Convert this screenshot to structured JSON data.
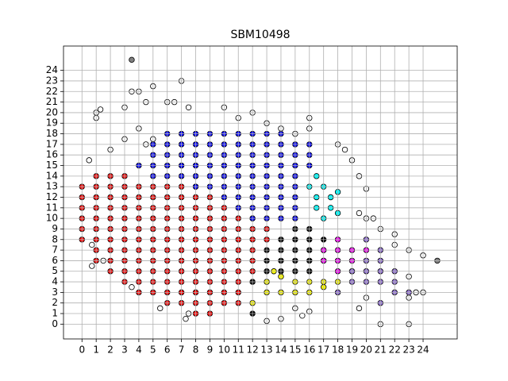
{
  "chart_data": {
    "type": "scatter",
    "title": "SBM10498",
    "xlim": [
      -1.3,
      26.4
    ],
    "ylim": [
      -1.4,
      26.3
    ],
    "xticks": [
      0,
      1,
      2,
      3,
      4,
      5,
      6,
      7,
      8,
      9,
      10,
      11,
      12,
      13,
      14,
      15,
      16,
      17,
      18,
      19,
      20,
      21,
      22,
      23,
      24
    ],
    "yticks": [
      0,
      1,
      2,
      3,
      4,
      5,
      6,
      7,
      8,
      9,
      10,
      11,
      12,
      13,
      14,
      15,
      16,
      17,
      18,
      19,
      20,
      21,
      22,
      23,
      24
    ],
    "grid": true,
    "series": [
      {
        "color": "#ff0000",
        "x": [
          1,
          2,
          3,
          0,
          1,
          2,
          3,
          4,
          5,
          6,
          7,
          8,
          0,
          1,
          2,
          3,
          4,
          5,
          6,
          7,
          8,
          9,
          0,
          1,
          2,
          3,
          4,
          5,
          6,
          7,
          8,
          9,
          10,
          0,
          1,
          2,
          3,
          4,
          5,
          6,
          7,
          8,
          9,
          10,
          11,
          12,
          0,
          1,
          2,
          3,
          4,
          5,
          6,
          7,
          8,
          9,
          10,
          11,
          12,
          13,
          0,
          1,
          2,
          3,
          4,
          5,
          6,
          7,
          8,
          9,
          10,
          11,
          12,
          13,
          1,
          2,
          3,
          4,
          5,
          6,
          7,
          8,
          9,
          10,
          11,
          12,
          1,
          2,
          3,
          4,
          5,
          6,
          7,
          8,
          9,
          10,
          11,
          12,
          2,
          3,
          4,
          5,
          6,
          7,
          8,
          9,
          10,
          11,
          12,
          3,
          4,
          5,
          6,
          7,
          8,
          9,
          10,
          11,
          12,
          4,
          5,
          6,
          7,
          8,
          9,
          10,
          11,
          6,
          7,
          8,
          9,
          10,
          11,
          8,
          9
        ],
        "y": [
          14,
          14,
          14,
          13,
          13,
          13,
          13,
          13,
          13,
          13,
          13,
          13,
          12,
          12,
          12,
          12,
          12,
          12,
          12,
          12,
          12,
          12,
          11,
          11,
          11,
          11,
          11,
          11,
          11,
          11,
          11,
          11,
          11,
          10,
          10,
          10,
          10,
          10,
          10,
          10,
          10,
          10,
          10,
          10,
          10,
          10,
          9,
          9,
          9,
          9,
          9,
          9,
          9,
          9,
          9,
          9,
          9,
          9,
          9,
          9,
          8,
          8,
          8,
          8,
          8,
          8,
          8,
          8,
          8,
          8,
          8,
          8,
          8,
          8,
          7,
          7,
          7,
          7,
          7,
          7,
          7,
          7,
          7,
          7,
          7,
          7,
          6,
          6,
          6,
          6,
          6,
          6,
          6,
          6,
          6,
          6,
          6,
          6,
          5,
          5,
          5,
          5,
          5,
          5,
          5,
          5,
          5,
          5,
          5,
          4,
          4,
          4,
          4,
          4,
          4,
          4,
          4,
          4,
          4,
          3,
          3,
          3,
          3,
          3,
          3,
          3,
          3,
          2,
          2,
          2,
          2,
          2,
          2,
          1,
          1
        ]
      },
      {
        "color": "#0000ff",
        "x": [
          6,
          7,
          8,
          9,
          10,
          11,
          12,
          13,
          14,
          15,
          5,
          6,
          7,
          8,
          9,
          10,
          11,
          12,
          13,
          14,
          15,
          16,
          5,
          6,
          7,
          8,
          9,
          10,
          11,
          12,
          13,
          14,
          15,
          16,
          4,
          5,
          6,
          7,
          8,
          9,
          10,
          11,
          12,
          13,
          14,
          15,
          16,
          5,
          6,
          7,
          8,
          9,
          10,
          11,
          12,
          13,
          14,
          15,
          8,
          9,
          10,
          11,
          12,
          13,
          14,
          15,
          10,
          11,
          12,
          13,
          14,
          15,
          11,
          12,
          13,
          14,
          15,
          12,
          13,
          14,
          15
        ],
        "y": [
          18,
          18,
          18,
          18,
          18,
          18,
          18,
          18,
          18,
          18,
          17,
          17,
          17,
          17,
          17,
          17,
          17,
          17,
          17,
          17,
          17,
          17,
          16,
          16,
          16,
          16,
          16,
          16,
          16,
          16,
          16,
          16,
          16,
          16,
          15,
          15,
          15,
          15,
          15,
          15,
          15,
          15,
          15,
          15,
          15,
          15,
          15,
          14,
          14,
          14,
          14,
          14,
          14,
          14,
          14,
          14,
          14,
          14,
          13,
          13,
          13,
          13,
          13,
          13,
          13,
          13,
          12,
          12,
          12,
          12,
          12,
          12,
          11,
          11,
          11,
          11,
          11,
          10,
          10,
          10,
          10
        ]
      },
      {
        "color": "#00ffff",
        "x": [
          16.5,
          17,
          16.5,
          17.5,
          16.5,
          17,
          18,
          17.5,
          16,
          18
        ],
        "y": [
          14,
          13,
          12,
          12,
          11,
          10,
          10.5,
          11,
          13,
          12.5
        ]
      },
      {
        "color": "#000000",
        "x": [
          15,
          16,
          14,
          15,
          16,
          17,
          13,
          14,
          15,
          16,
          17,
          13,
          14,
          15,
          16,
          17,
          13,
          14,
          15,
          16,
          12,
          13,
          12
        ],
        "y": [
          9,
          9,
          8,
          8,
          8,
          8,
          7,
          7,
          7,
          7,
          7,
          6,
          6,
          6,
          6,
          6,
          5,
          5,
          5,
          5,
          4,
          4,
          1
        ]
      },
      {
        "color": "#ffff00",
        "x": [
          12,
          13,
          13,
          14,
          15,
          16,
          17,
          14,
          15,
          16,
          13.5,
          17,
          18
        ],
        "y": [
          2,
          3,
          4,
          4.5,
          4,
          4,
          4,
          3,
          3,
          3,
          5,
          3.5,
          4
        ]
      },
      {
        "color": "#ff00ff",
        "x": [
          17,
          18,
          19,
          17,
          18,
          19,
          18,
          20,
          18,
          19
        ],
        "y": [
          6,
          6,
          6,
          7,
          7,
          7,
          8,
          7,
          5,
          5
        ]
      },
      {
        "color": "#9370db",
        "x": [
          19,
          20,
          21,
          22,
          20,
          21,
          22,
          23,
          21,
          19,
          20,
          21,
          18,
          22,
          20,
          21
        ],
        "y": [
          4,
          4,
          4,
          4,
          5,
          5,
          3,
          3,
          2,
          5,
          6,
          6,
          3,
          5,
          8,
          7
        ]
      },
      {
        "color": "#ffffff",
        "x": [
          1,
          1,
          1.3,
          2,
          3,
          3.5,
          4,
          4.5,
          5,
          7,
          6,
          6.5,
          7.5,
          10,
          12,
          11,
          13,
          16,
          16,
          15,
          14,
          18,
          18.5,
          19,
          19.5,
          20,
          19.5,
          20,
          20.5,
          21,
          22,
          22,
          23,
          24,
          23,
          23.5,
          24,
          23,
          21,
          23,
          20,
          19.5,
          16,
          14,
          13,
          7.3,
          7.5,
          5.5,
          3.5,
          0.7,
          0.7,
          0.5,
          1.5,
          3,
          4,
          4.5,
          5,
          15,
          15.5
        ],
        "y": [
          20,
          19.5,
          20.3,
          16.5,
          20.5,
          22,
          22,
          21,
          22.5,
          23,
          21,
          21,
          20.5,
          20.5,
          20,
          19.5,
          19,
          19.5,
          18.5,
          18,
          18.5,
          17,
          16.5,
          15.5,
          14,
          12.8,
          10.5,
          10,
          10,
          9,
          8.5,
          7.5,
          7,
          6.5,
          4.5,
          3,
          3,
          2.5,
          0,
          0,
          2.5,
          1.5,
          1.2,
          0.5,
          0.3,
          0.5,
          1,
          1.5,
          3.5,
          7.5,
          5.5,
          15.5,
          6,
          17.5,
          18.5,
          17,
          17.5,
          1.5,
          0.8
        ]
      },
      {
        "color": "#808080",
        "x": [
          3.5,
          25
        ],
        "y": [
          25,
          6
        ]
      }
    ]
  }
}
